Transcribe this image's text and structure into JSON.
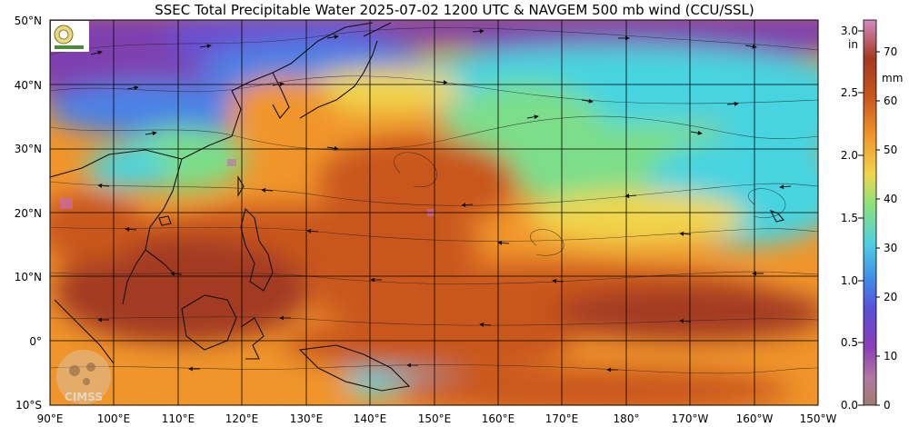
{
  "title": "SSEC Total Precipitable Water  2025-07-02 1200 UTC & NAVGEM 500 mb wind (CCU/SSL)",
  "lat_labels": [
    "50°N",
    "40°N",
    "30°N",
    "20°N",
    "10°N",
    "0°",
    "10°S"
  ],
  "lon_labels": [
    "90°E",
    "100°E",
    "110°E",
    "120°E",
    "130°E",
    "140°E",
    "150°E",
    "160°E",
    "170°E",
    "180°",
    "170°W",
    "160°W",
    "150°W"
  ],
  "inch_scale": {
    "unit": "in",
    "ticks": [
      "3.0",
      "2.5",
      "2.0",
      "1.5",
      "1.0",
      "0.5",
      "0.0"
    ]
  },
  "mm_scale": {
    "unit": "mm",
    "ticks": [
      "70",
      "60",
      "50",
      "40",
      "30",
      "20",
      "10",
      "0"
    ]
  },
  "logo_text": "CIMSS",
  "colors": {
    "purple": "#7e3fae",
    "blue": "#4a82e6",
    "cyan": "#46d4e0",
    "green": "#7cde8a",
    "yellow": "#f0d54c",
    "orange": "#f0952b",
    "rust": "#c9561f",
    "brown": "#a33a22",
    "magenta": "#c76bb4",
    "coast": "#111111",
    "grid": "#000000"
  }
}
